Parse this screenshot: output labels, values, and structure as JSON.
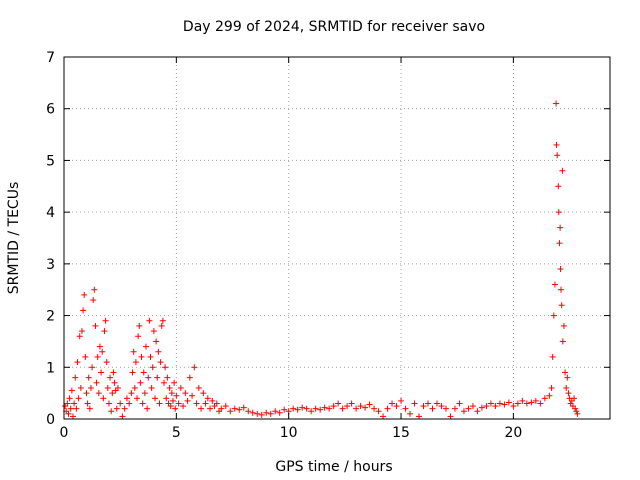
{
  "chart_data": {
    "type": "scatter",
    "title": "Day 299 of 2024, SRMTID for receiver savo",
    "xlabel": "GPS time / hours",
    "ylabel": "SRMTID / TECUs",
    "xlim": [
      0,
      24.3
    ],
    "ylim": [
      0,
      7
    ],
    "grid": true,
    "xticks": [
      0,
      5,
      10,
      15,
      20
    ],
    "xtick_labels": [
      "0",
      "5",
      "10",
      "15",
      "20"
    ],
    "yticks": [
      0,
      1,
      2,
      3,
      4,
      5,
      6,
      7
    ],
    "ytick_labels": [
      "0",
      "1",
      "2",
      "3",
      "4",
      "5",
      "6",
      "7"
    ],
    "marker": "+",
    "series": [
      {
        "name": "SRMTID",
        "color": "#ff0000",
        "points": [
          [
            0.05,
            0.25
          ],
          [
            0.1,
            0.15
          ],
          [
            0.15,
            0.3
          ],
          [
            0.2,
            0.1
          ],
          [
            0.25,
            0.4
          ],
          [
            0.3,
            0.2
          ],
          [
            0.35,
            0.55
          ],
          [
            0.4,
            0.05
          ],
          [
            0.45,
            0.3
          ],
          [
            0.5,
            0.8
          ],
          [
            0.55,
            0.2
          ],
          [
            0.6,
            1.1
          ],
          [
            0.65,
            0.4
          ],
          [
            0.7,
            1.6
          ],
          [
            0.75,
            0.6
          ],
          [
            0.8,
            1.7
          ],
          [
            0.85,
            2.1
          ],
          [
            0.9,
            2.4
          ],
          [
            0.95,
            1.2
          ],
          [
            1.0,
            0.5
          ],
          [
            1.05,
            0.3
          ],
          [
            1.1,
            0.8
          ],
          [
            1.15,
            0.2
          ],
          [
            1.2,
            0.6
          ],
          [
            1.25,
            1.0
          ],
          [
            1.3,
            2.3
          ],
          [
            1.35,
            2.5
          ],
          [
            1.4,
            1.8
          ],
          [
            1.45,
            0.7
          ],
          [
            1.5,
            1.2
          ],
          [
            1.55,
            0.5
          ],
          [
            1.6,
            1.4
          ],
          [
            1.65,
            0.9
          ],
          [
            1.7,
            1.3
          ],
          [
            1.75,
            0.4
          ],
          [
            1.8,
            1.7
          ],
          [
            1.85,
            1.9
          ],
          [
            1.9,
            1.1
          ],
          [
            1.95,
            0.6
          ],
          [
            2.0,
            0.3
          ],
          [
            2.05,
            0.8
          ],
          [
            2.1,
            0.15
          ],
          [
            2.15,
            0.5
          ],
          [
            2.2,
            0.9
          ],
          [
            2.25,
            0.7
          ],
          [
            2.3,
            0.55
          ],
          [
            2.35,
            0.2
          ],
          [
            2.4,
            0.6
          ],
          [
            2.5,
            0.3
          ],
          [
            2.6,
            0.05
          ],
          [
            2.7,
            0.2
          ],
          [
            2.8,
            0.4
          ],
          [
            2.9,
            0.3
          ],
          [
            3.0,
            0.5
          ],
          [
            3.05,
            0.9
          ],
          [
            3.1,
            1.3
          ],
          [
            3.15,
            0.6
          ],
          [
            3.2,
            1.1
          ],
          [
            3.25,
            0.4
          ],
          [
            3.3,
            1.6
          ],
          [
            3.35,
            1.8
          ],
          [
            3.4,
            0.7
          ],
          [
            3.45,
            1.2
          ],
          [
            3.5,
            0.3
          ],
          [
            3.55,
            0.9
          ],
          [
            3.6,
            0.5
          ],
          [
            3.65,
            1.4
          ],
          [
            3.7,
            0.2
          ],
          [
            3.75,
            0.8
          ],
          [
            3.8,
            1.9
          ],
          [
            3.85,
            1.2
          ],
          [
            3.9,
            0.6
          ],
          [
            3.95,
            1.0
          ],
          [
            4.0,
            1.7
          ],
          [
            4.05,
            0.4
          ],
          [
            4.1,
            1.5
          ],
          [
            4.15,
            0.8
          ],
          [
            4.2,
            1.3
          ],
          [
            4.25,
            0.3
          ],
          [
            4.3,
            1.1
          ],
          [
            4.35,
            1.8
          ],
          [
            4.4,
            1.9
          ],
          [
            4.45,
            0.7
          ],
          [
            4.5,
            1.0
          ],
          [
            4.55,
            0.4
          ],
          [
            4.6,
            0.8
          ],
          [
            4.65,
            0.3
          ],
          [
            4.7,
            0.6
          ],
          [
            4.75,
            0.25
          ],
          [
            4.8,
            0.5
          ],
          [
            4.85,
            0.35
          ],
          [
            4.9,
            0.7
          ],
          [
            4.95,
            0.2
          ],
          [
            5.0,
            0.45
          ],
          [
            5.1,
            0.3
          ],
          [
            5.2,
            0.6
          ],
          [
            5.3,
            0.25
          ],
          [
            5.4,
            0.5
          ],
          [
            5.5,
            0.35
          ],
          [
            5.6,
            0.8
          ],
          [
            5.7,
            0.45
          ],
          [
            5.8,
            1.0
          ],
          [
            5.9,
            0.3
          ],
          [
            6.0,
            0.6
          ],
          [
            6.1,
            0.2
          ],
          [
            6.2,
            0.5
          ],
          [
            6.3,
            0.3
          ],
          [
            6.4,
            0.4
          ],
          [
            6.5,
            0.2
          ],
          [
            6.6,
            0.35
          ],
          [
            6.7,
            0.25
          ],
          [
            6.8,
            0.3
          ],
          [
            6.9,
            0.15
          ],
          [
            7.0,
            0.2
          ],
          [
            7.2,
            0.25
          ],
          [
            7.4,
            0.15
          ],
          [
            7.6,
            0.2
          ],
          [
            7.8,
            0.18
          ],
          [
            8.0,
            0.22
          ],
          [
            8.2,
            0.15
          ],
          [
            8.4,
            0.12
          ],
          [
            8.6,
            0.1
          ],
          [
            8.8,
            0.08
          ],
          [
            9.0,
            0.12
          ],
          [
            9.2,
            0.1
          ],
          [
            9.4,
            0.15
          ],
          [
            9.6,
            0.12
          ],
          [
            9.8,
            0.18
          ],
          [
            10.0,
            0.15
          ],
          [
            10.2,
            0.2
          ],
          [
            10.4,
            0.18
          ],
          [
            10.6,
            0.22
          ],
          [
            10.8,
            0.2
          ],
          [
            11.0,
            0.15
          ],
          [
            11.2,
            0.2
          ],
          [
            11.4,
            0.18
          ],
          [
            11.6,
            0.22
          ],
          [
            11.8,
            0.2
          ],
          [
            12.0,
            0.25
          ],
          [
            12.2,
            0.3
          ],
          [
            12.4,
            0.2
          ],
          [
            12.6,
            0.25
          ],
          [
            12.8,
            0.3
          ],
          [
            13.0,
            0.2
          ],
          [
            13.2,
            0.25
          ],
          [
            13.4,
            0.22
          ],
          [
            13.6,
            0.28
          ],
          [
            13.8,
            0.2
          ],
          [
            14.0,
            0.15
          ],
          [
            14.2,
            0.05
          ],
          [
            14.4,
            0.2
          ],
          [
            14.6,
            0.3
          ],
          [
            14.8,
            0.25
          ],
          [
            15.0,
            0.35
          ],
          [
            15.2,
            0.2
          ],
          [
            15.4,
            0.1
          ],
          [
            15.6,
            0.3
          ],
          [
            15.8,
            0.05
          ],
          [
            16.0,
            0.25
          ],
          [
            16.2,
            0.3
          ],
          [
            16.4,
            0.2
          ],
          [
            16.6,
            0.3
          ],
          [
            16.8,
            0.25
          ],
          [
            17.0,
            0.2
          ],
          [
            17.2,
            0.05
          ],
          [
            17.4,
            0.2
          ],
          [
            17.6,
            0.3
          ],
          [
            17.8,
            0.15
          ],
          [
            18.0,
            0.2
          ],
          [
            18.2,
            0.25
          ],
          [
            18.4,
            0.15
          ],
          [
            18.6,
            0.22
          ],
          [
            18.8,
            0.25
          ],
          [
            19.0,
            0.3
          ],
          [
            19.2,
            0.25
          ],
          [
            19.4,
            0.3
          ],
          [
            19.6,
            0.28
          ],
          [
            19.8,
            0.32
          ],
          [
            20.0,
            0.25
          ],
          [
            20.2,
            0.3
          ],
          [
            20.4,
            0.35
          ],
          [
            20.6,
            0.3
          ],
          [
            20.8,
            0.32
          ],
          [
            21.0,
            0.35
          ],
          [
            21.2,
            0.3
          ],
          [
            21.4,
            0.4
          ],
          [
            21.6,
            0.45
          ],
          [
            21.7,
            0.6
          ],
          [
            21.75,
            1.2
          ],
          [
            21.8,
            2.0
          ],
          [
            21.85,
            2.6
          ],
          [
            21.9,
            6.1
          ],
          [
            21.92,
            5.3
          ],
          [
            21.95,
            5.1
          ],
          [
            22.0,
            4.5
          ],
          [
            22.02,
            4.0
          ],
          [
            22.05,
            3.4
          ],
          [
            22.08,
            3.7
          ],
          [
            22.1,
            2.9
          ],
          [
            22.12,
            2.5
          ],
          [
            22.15,
            2.2
          ],
          [
            22.18,
            4.8
          ],
          [
            22.2,
            1.5
          ],
          [
            22.25,
            1.8
          ],
          [
            22.3,
            0.9
          ],
          [
            22.35,
            0.6
          ],
          [
            22.4,
            0.8
          ],
          [
            22.45,
            0.5
          ],
          [
            22.5,
            0.4
          ],
          [
            22.55,
            0.3
          ],
          [
            22.6,
            0.35
          ],
          [
            22.65,
            0.25
          ],
          [
            22.7,
            0.4
          ],
          [
            22.75,
            0.2
          ],
          [
            22.8,
            0.15
          ],
          [
            22.85,
            0.1
          ]
        ]
      }
    ]
  }
}
